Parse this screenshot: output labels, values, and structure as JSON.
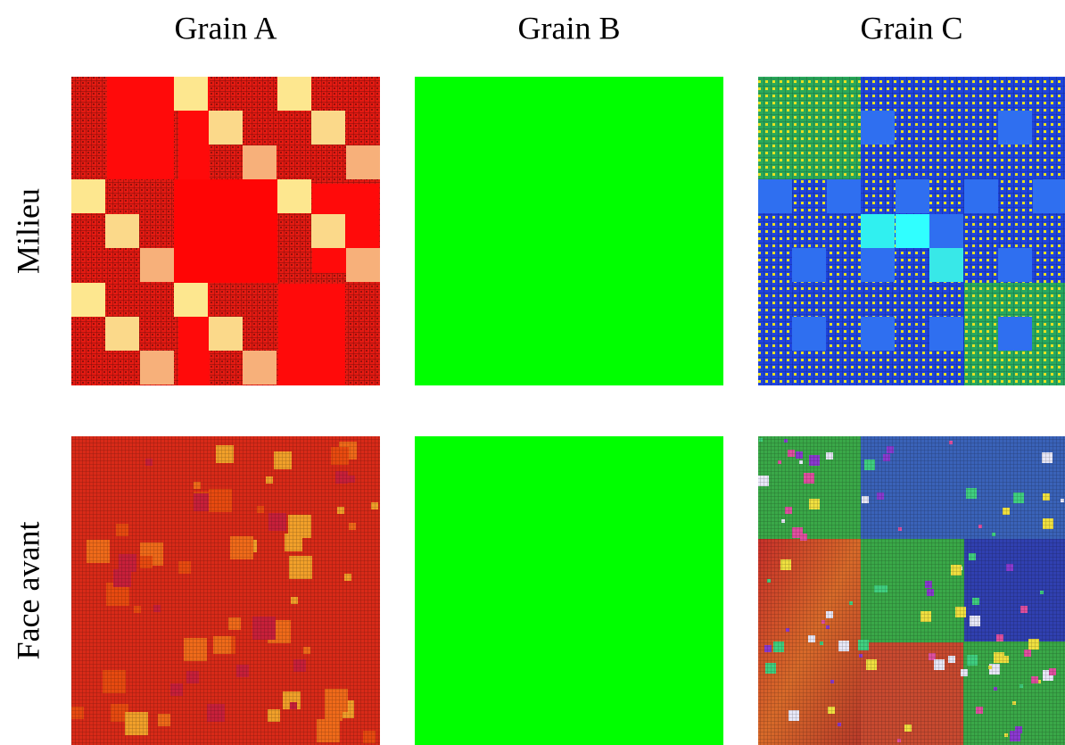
{
  "columns": [
    "Grain A",
    "Grain B",
    "Grain C"
  ],
  "rows": [
    "Milieu",
    "Face avant"
  ]
}
